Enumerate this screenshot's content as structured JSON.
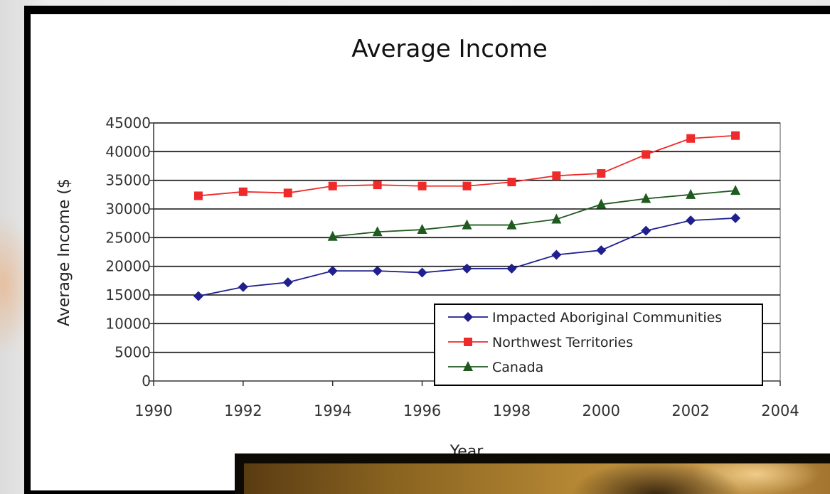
{
  "chart_data": {
    "type": "line",
    "title": "Average Income",
    "xlabel": "Year",
    "ylabel": "Average Income ($",
    "xlim": [
      1990,
      2004
    ],
    "ylim": [
      0,
      45000
    ],
    "x_ticks": [
      "1990",
      "1992",
      "1994",
      "1996",
      "1998",
      "2000",
      "2002",
      "2004"
    ],
    "y_ticks": [
      "0",
      "5000",
      "10000",
      "15000",
      "20000",
      "25000",
      "30000",
      "35000",
      "40000",
      "45000"
    ],
    "grid": "horizontal",
    "legend_position": "bottom-right",
    "series": [
      {
        "name": "Impacted Aboriginal Communities",
        "color": "#1f1f8f",
        "marker": "diamond",
        "x": [
          1991,
          1992,
          1993,
          1994,
          1995,
          1996,
          1997,
          1998,
          1999,
          2000,
          2001,
          2002,
          2003
        ],
        "y": [
          14800,
          16400,
          17200,
          19200,
          19200,
          18900,
          19600,
          19600,
          22000,
          22800,
          26200,
          28000,
          28400
        ]
      },
      {
        "name": "Northwest Territories",
        "color": "#ee2a2a",
        "marker": "square",
        "x": [
          1991,
          1992,
          1993,
          1994,
          1995,
          1996,
          1997,
          1998,
          1999,
          2000,
          2001,
          2002,
          2003
        ],
        "y": [
          32300,
          33000,
          32800,
          34000,
          34200,
          34000,
          34000,
          34700,
          35800,
          36200,
          39500,
          42300,
          42800
        ]
      },
      {
        "name": "Canada",
        "color": "#1f5a1f",
        "marker": "triangle",
        "x": [
          1994,
          1995,
          1996,
          1997,
          1998,
          1999,
          2000,
          2001,
          2002,
          2003
        ],
        "y": [
          25200,
          26000,
          26400,
          27200,
          27200,
          28200,
          30800,
          31800,
          32500,
          33200
        ]
      }
    ]
  }
}
